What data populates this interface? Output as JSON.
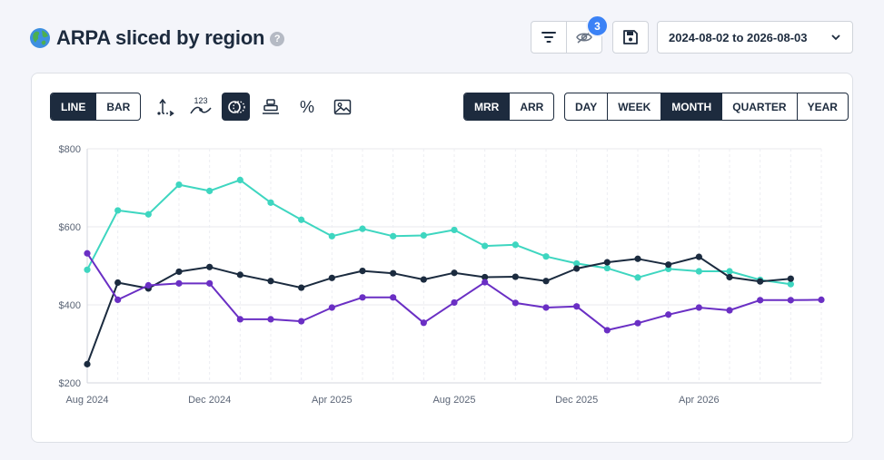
{
  "header": {
    "title": "ARPA sliced by region",
    "help_icon": "question-circle-icon",
    "help_glyph": "?"
  },
  "toolbar": {
    "hidden_count": "3",
    "date_range": "2024-08-02 to 2026-08-03"
  },
  "chart_controls": {
    "chart_type_options": [
      "LINE",
      "BAR"
    ],
    "chart_type_active": "LINE",
    "tools": [
      "axis-icon",
      "data-labels-icon",
      "compare-toggle-icon",
      "stack-icon",
      "percent-icon",
      "image-icon"
    ],
    "data_labels_glyph": "123",
    "percent_glyph": "%",
    "measure_options": [
      "MRR",
      "ARR"
    ],
    "measure_active": "MRR",
    "interval_options": [
      "DAY",
      "WEEK",
      "MONTH",
      "QUARTER",
      "YEAR"
    ],
    "interval_active": "MONTH"
  },
  "chart_data": {
    "type": "line",
    "x": [
      "2024-08",
      "2024-09",
      "2024-10",
      "2024-11",
      "2024-12",
      "2025-01",
      "2025-02",
      "2025-03",
      "2025-04",
      "2025-05",
      "2025-06",
      "2025-07",
      "2025-08",
      "2025-09",
      "2025-10",
      "2025-11",
      "2025-12",
      "2026-01",
      "2026-02",
      "2026-03",
      "2026-04",
      "2026-05",
      "2026-06",
      "2026-07",
      "2026-08"
    ],
    "x_tick_labels": [
      "Aug 2024",
      "Dec 2024",
      "Apr 2025",
      "Aug 2025",
      "Dec 2025",
      "Apr 2026"
    ],
    "y_tick_labels": [
      "$200",
      "$400",
      "$600",
      "$800"
    ],
    "ylim": [
      200,
      800
    ],
    "grid": true,
    "series": [
      {
        "color": "#3ed6c0",
        "values": [
          490,
          642,
          632,
          708,
          692,
          720,
          662,
          618,
          576,
          595,
          576,
          578,
          592,
          551,
          554,
          524,
          506,
          494,
          470,
          492,
          486,
          486,
          464,
          453,
          null
        ]
      },
      {
        "color": "#1b2b3f",
        "values": [
          248,
          457,
          442,
          485,
          497,
          477,
          461,
          444,
          469,
          487,
          481,
          465,
          482,
          471,
          472,
          461,
          493,
          509,
          518,
          503,
          523,
          471,
          460,
          467,
          null
        ]
      },
      {
        "color": "#6a2fc4",
        "values": [
          532,
          413,
          450,
          455,
          455,
          363,
          363,
          358,
          393,
          419,
          419,
          354,
          406,
          458,
          405,
          393,
          396,
          335,
          353,
          375,
          393,
          386,
          412,
          412,
          413
        ]
      }
    ]
  }
}
